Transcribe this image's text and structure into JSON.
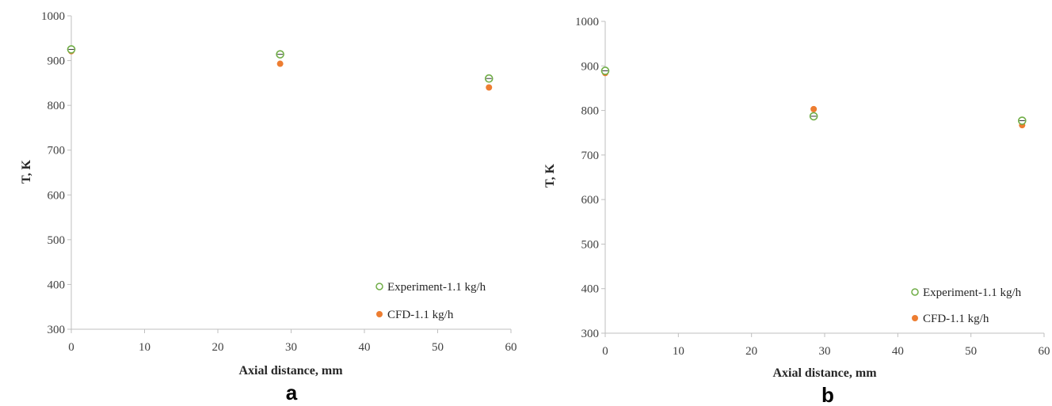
{
  "chart_data": [
    {
      "panel_label": "a",
      "type": "scatter",
      "xlabel": "Axial distance, mm",
      "ylabel": "T, K",
      "xlim": [
        0,
        60
      ],
      "ylim": [
        300,
        1000
      ],
      "x_ticks": [
        "0",
        "10",
        "20",
        "30",
        "40",
        "50",
        "60"
      ],
      "y_ticks": [
        "300",
        "400",
        "500",
        "600",
        "700",
        "800",
        "900",
        "1000"
      ],
      "grid": false,
      "legend_position": "bottom-right",
      "series": [
        {
          "name": "Experiment-1.1 kg/h",
          "marker": "hollow-circle",
          "color": "#70ad47",
          "x": [
            0,
            28.5,
            57
          ],
          "y": [
            925,
            914,
            860
          ]
        },
        {
          "name": "CFD-1.1 kg/h",
          "marker": "filled-circle",
          "color": "#ed7d31",
          "x": [
            0,
            28.5,
            57
          ],
          "y": [
            921,
            893,
            840
          ]
        }
      ]
    },
    {
      "panel_label": "b",
      "type": "scatter",
      "xlabel": "Axial distance, mm",
      "ylabel": "T, K",
      "xlim": [
        0,
        60
      ],
      "ylim": [
        300,
        1000
      ],
      "x_ticks": [
        "0",
        "10",
        "20",
        "30",
        "40",
        "50",
        "60"
      ],
      "y_ticks": [
        "300",
        "400",
        "500",
        "600",
        "700",
        "800",
        "900",
        "1000"
      ],
      "grid": false,
      "legend_position": "bottom-right",
      "series": [
        {
          "name": "Experiment-1.1 kg/h",
          "marker": "hollow-circle",
          "color": "#70ad47",
          "x": [
            0,
            28.5,
            57
          ],
          "y": [
            889,
            787,
            777
          ]
        },
        {
          "name": "CFD-1.1 kg/h",
          "marker": "filled-circle",
          "color": "#ed7d31",
          "x": [
            0,
            28.5,
            57
          ],
          "y": [
            884,
            803,
            767
          ]
        }
      ]
    }
  ]
}
